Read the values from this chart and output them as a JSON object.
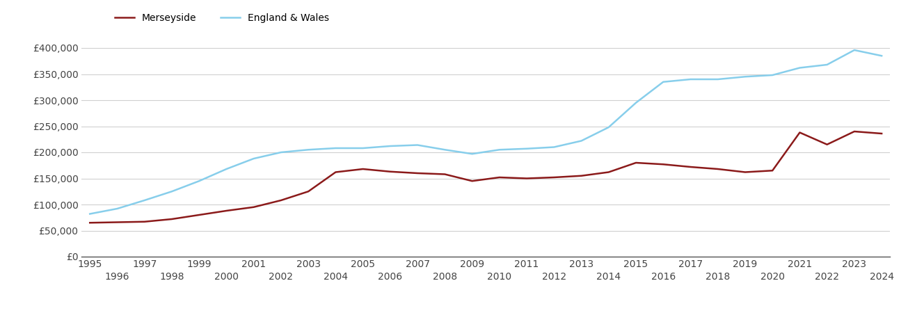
{
  "merseyside": {
    "years": [
      1995,
      1996,
      1997,
      1998,
      1999,
      2000,
      2001,
      2002,
      2003,
      2004,
      2005,
      2006,
      2007,
      2008,
      2009,
      2010,
      2011,
      2012,
      2013,
      2014,
      2015,
      2016,
      2017,
      2018,
      2019,
      2020,
      2021,
      2022,
      2023,
      2024
    ],
    "values": [
      65000,
      66000,
      67000,
      72000,
      80000,
      88000,
      95000,
      108000,
      125000,
      162000,
      168000,
      163000,
      160000,
      158000,
      145000,
      152000,
      150000,
      152000,
      155000,
      162000,
      180000,
      177000,
      172000,
      168000,
      162000,
      165000,
      238000,
      215000,
      240000,
      236000
    ]
  },
  "england_wales": {
    "years": [
      1995,
      1996,
      1997,
      1998,
      1999,
      2000,
      2001,
      2002,
      2003,
      2004,
      2005,
      2006,
      2007,
      2008,
      2009,
      2010,
      2011,
      2012,
      2013,
      2014,
      2015,
      2016,
      2017,
      2018,
      2019,
      2020,
      2021,
      2022,
      2023,
      2024
    ],
    "values": [
      82000,
      92000,
      108000,
      125000,
      145000,
      168000,
      188000,
      200000,
      205000,
      208000,
      208000,
      212000,
      214000,
      205000,
      197000,
      205000,
      207000,
      210000,
      222000,
      248000,
      295000,
      335000,
      340000,
      340000,
      345000,
      348000,
      362000,
      368000,
      396000,
      385000
    ]
  },
  "merseyside_color": "#8B1A1A",
  "england_wales_color": "#87CEEB",
  "merseyside_label": "Merseyside",
  "england_wales_label": "England & Wales",
  "ylim": [
    0,
    420000
  ],
  "yticks": [
    0,
    50000,
    100000,
    150000,
    200000,
    250000,
    300000,
    350000,
    400000
  ],
  "xlim_min": 1995,
  "xlim_max": 2024,
  "background_color": "#ffffff",
  "grid_color": "#d0d0d0",
  "line_width": 1.8
}
